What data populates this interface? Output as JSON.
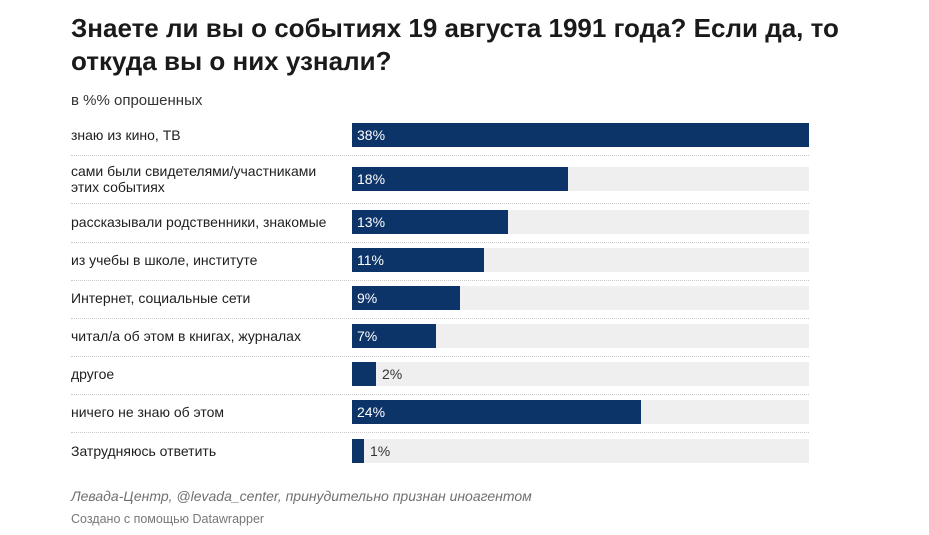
{
  "header": {
    "title": "Знаете ли вы о событиях 19 августа 1991 года? Если да, то откуда вы о них узнали?",
    "subtitle": "в %% опрошенных"
  },
  "footer": {
    "source": "Левада-Центр, @levada_center, принудительно признан иноагентом",
    "credit": "Создано с помощью Datawrapper"
  },
  "colors": {
    "bar": "#0d3468",
    "track": "#efefef"
  },
  "chart_data": {
    "type": "bar",
    "orientation": "horizontal",
    "title": "Знаете ли вы о событиях 19 августа 1991 года? Если да, то откуда вы о них узнали?",
    "subtitle": "в %% опрошенных",
    "xlim": [
      0,
      38
    ],
    "grid": false,
    "categories": [
      "знаю из кино, ТВ",
      "сами были свидетелями/участниками этих событиях",
      "рассказывали родственники, знакомые",
      "из учебы в школе, институте",
      "Интернет, социальные сети",
      "читал/а об этом в книгах, журналах",
      "другое",
      "ничего не знаю об этом",
      "Затрудняюсь ответить"
    ],
    "values": [
      38,
      18,
      13,
      11,
      9,
      7,
      2,
      24,
      1
    ],
    "value_labels": [
      "38%",
      "18%",
      "13%",
      "11%",
      "9%",
      "7%",
      "2%",
      "24%",
      "1%"
    ]
  }
}
